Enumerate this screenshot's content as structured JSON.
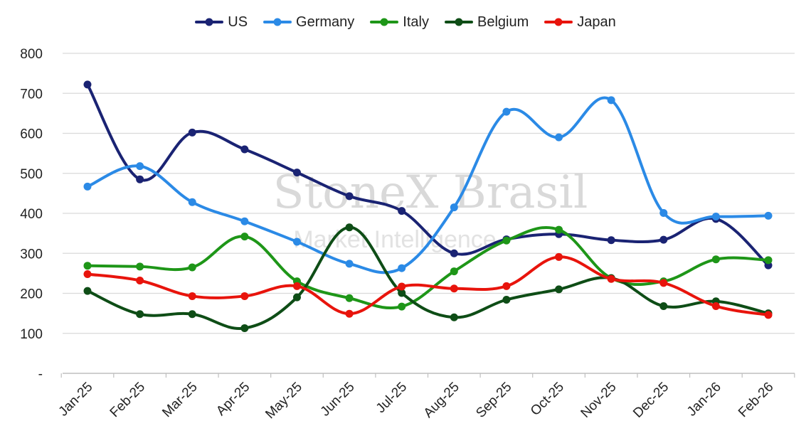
{
  "chart_data": {
    "type": "line",
    "categories": [
      "Jan-25",
      "Feb-25",
      "Mar-25",
      "Apr-25",
      "May-25",
      "Jun-25",
      "Jul-25",
      "Aug-25",
      "Sep-25",
      "Oct-25",
      "Nov-25",
      "Dec-25",
      "Jan-26",
      "Feb-26"
    ],
    "series": [
      {
        "name": "US",
        "color": "#1a2373",
        "values": [
          722,
          485,
          602,
          560,
          502,
          443,
          406,
          300,
          335,
          348,
          333,
          334,
          386,
          270
        ]
      },
      {
        "name": "Germany",
        "color": "#2b8ae6",
        "values": [
          467,
          518,
          428,
          380,
          329,
          274,
          263,
          415,
          654,
          590,
          683,
          401,
          392,
          394
        ]
      },
      {
        "name": "Italy",
        "color": "#1e9618",
        "values": [
          269,
          267,
          265,
          342,
          230,
          188,
          167,
          255,
          332,
          359,
          238,
          230,
          285,
          283
        ]
      },
      {
        "name": "Belgium",
        "color": "#0e4d16",
        "values": [
          206,
          148,
          148,
          113,
          190,
          365,
          201,
          140,
          184,
          210,
          238,
          168,
          180,
          150
        ]
      },
      {
        "name": "Japan",
        "color": "#e8140c",
        "values": [
          248,
          232,
          193,
          193,
          218,
          149,
          217,
          212,
          218,
          291,
          236,
          226,
          168,
          146
        ]
      }
    ],
    "y_ticks": [
      "-",
      "100",
      "200",
      "300",
      "400",
      "500",
      "600",
      "700",
      "800"
    ],
    "ylim": [
      0,
      800
    ],
    "grid": true,
    "legend_position": "top-center",
    "watermark": {
      "main": "StoneX Brasil",
      "sub": "Market Intelligence"
    }
  }
}
